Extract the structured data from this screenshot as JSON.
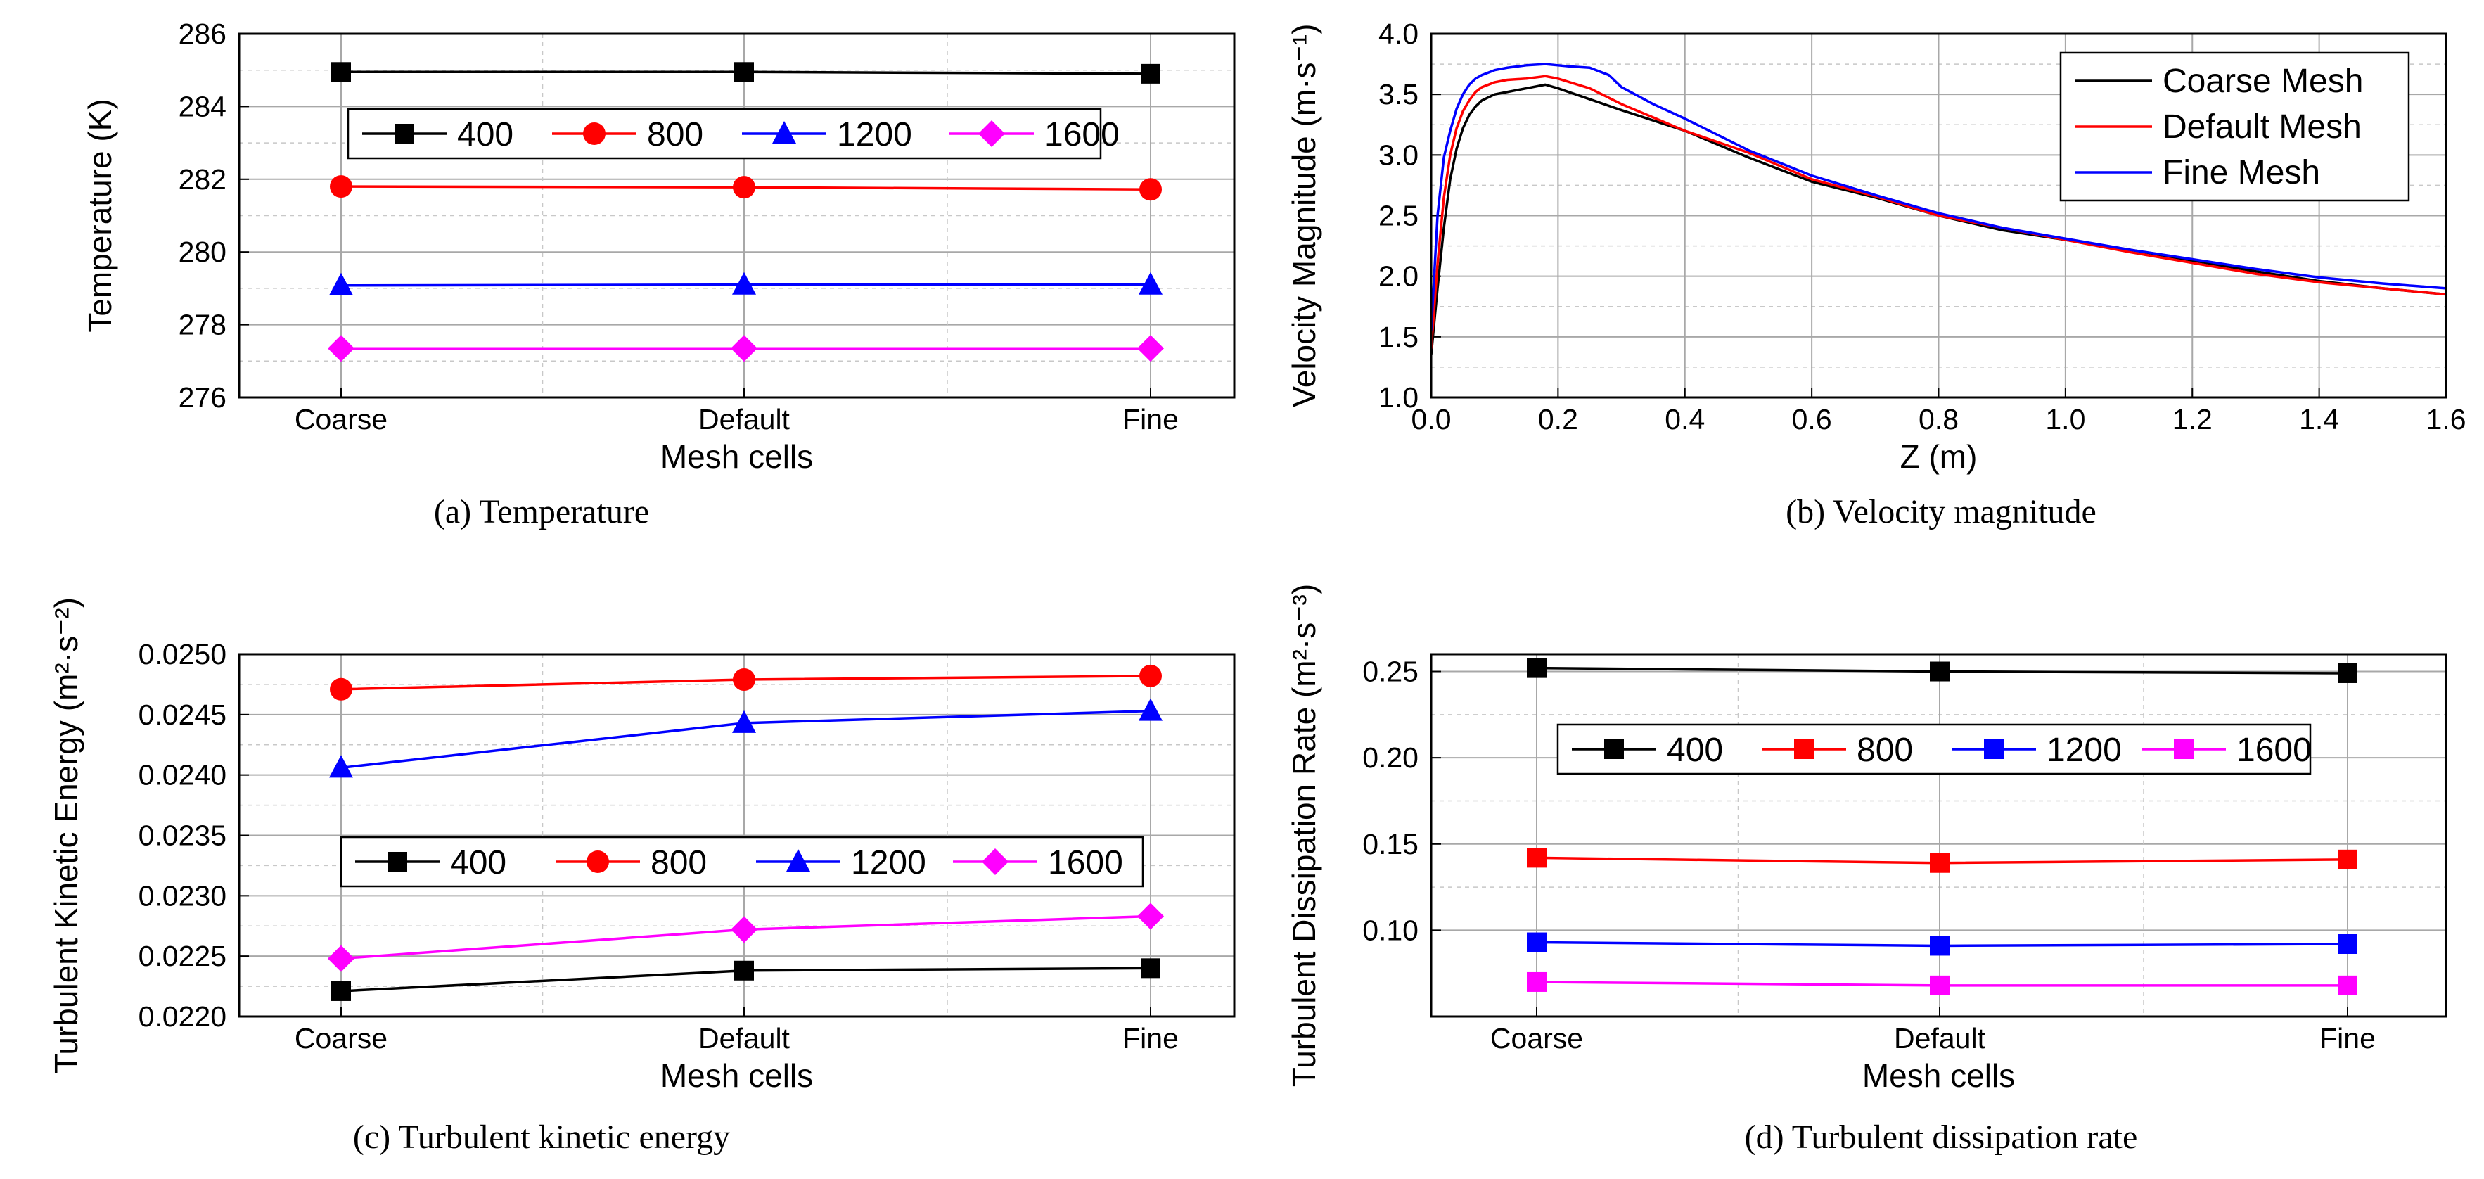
{
  "chart_data": [
    {
      "id": "a",
      "type": "line",
      "caption": "(a) Temperature",
      "xlabel": "Mesh cells",
      "ylabel": "Temperature (K)",
      "categories": [
        "Coarse",
        "Default",
        "Fine"
      ],
      "ylim": [
        276,
        286
      ],
      "yticks": [
        "276",
        "278",
        "280",
        "282",
        "284",
        "286"
      ],
      "legend_position": "top",
      "series": [
        {
          "name": "400",
          "color": "#000000",
          "marker": "square",
          "values": [
            284.95,
            284.95,
            284.9
          ]
        },
        {
          "name": "800",
          "color": "#ff0000",
          "marker": "circle",
          "values": [
            281.8,
            281.78,
            281.72
          ]
        },
        {
          "name": "1200",
          "color": "#0000ff",
          "marker": "triangle",
          "values": [
            279.08,
            279.1,
            279.1
          ]
        },
        {
          "name": "1600",
          "color": "#ff00ff",
          "marker": "diamond",
          "values": [
            277.35,
            277.35,
            277.35
          ]
        }
      ]
    },
    {
      "id": "b",
      "type": "line",
      "caption": "(b) Velocity magnitude",
      "xlabel": "Z (m)",
      "ylabel": "Velocity Magnitude (m·s⁻¹)",
      "xlim": [
        0,
        1.6
      ],
      "ylim": [
        1.0,
        4.0
      ],
      "xticks": [
        "0.0",
        "0.2",
        "0.4",
        "0.6",
        "0.8",
        "1.0",
        "1.2",
        "1.4",
        "1.6"
      ],
      "yticks": [
        "1.0",
        "1.5",
        "2.0",
        "2.5",
        "3.0",
        "3.5",
        "4.0"
      ],
      "legend_position": "top-right",
      "series": [
        {
          "name": "Coarse Mesh",
          "color": "#000000",
          "x": [
            0.0,
            0.01,
            0.02,
            0.03,
            0.04,
            0.05,
            0.06,
            0.07,
            0.08,
            0.1,
            0.12,
            0.15,
            0.18,
            0.2,
            0.25,
            0.3,
            0.4,
            0.5,
            0.6,
            0.7,
            0.8,
            0.9,
            1.0,
            1.1,
            1.2,
            1.3,
            1.4,
            1.5,
            1.6
          ],
          "y": [
            1.35,
            1.9,
            2.4,
            2.8,
            3.05,
            3.22,
            3.33,
            3.4,
            3.45,
            3.5,
            3.52,
            3.55,
            3.58,
            3.55,
            3.46,
            3.37,
            3.2,
            2.98,
            2.78,
            2.65,
            2.5,
            2.38,
            2.3,
            2.22,
            2.13,
            2.04,
            1.96,
            1.9,
            1.85
          ]
        },
        {
          "name": "Default Mesh",
          "color": "#ff0000",
          "x": [
            0.0,
            0.01,
            0.02,
            0.03,
            0.04,
            0.05,
            0.06,
            0.07,
            0.08,
            0.1,
            0.12,
            0.15,
            0.18,
            0.2,
            0.25,
            0.3,
            0.4,
            0.5,
            0.6,
            0.7,
            0.8,
            0.9,
            1.0,
            1.1,
            1.2,
            1.3,
            1.4,
            1.5,
            1.6
          ],
          "y": [
            1.4,
            2.1,
            2.65,
            3.0,
            3.22,
            3.36,
            3.45,
            3.52,
            3.56,
            3.6,
            3.62,
            3.63,
            3.65,
            3.63,
            3.55,
            3.42,
            3.2,
            3.02,
            2.8,
            2.66,
            2.5,
            2.4,
            2.3,
            2.2,
            2.11,
            2.02,
            1.95,
            1.9,
            1.85
          ]
        },
        {
          "name": "Fine Mesh",
          "color": "#0000ff",
          "x": [
            0.0,
            0.01,
            0.02,
            0.03,
            0.04,
            0.05,
            0.06,
            0.07,
            0.08,
            0.1,
            0.12,
            0.15,
            0.18,
            0.2,
            0.22,
            0.25,
            0.28,
            0.3,
            0.35,
            0.4,
            0.5,
            0.6,
            0.7,
            0.8,
            0.9,
            1.0,
            1.1,
            1.2,
            1.3,
            1.4,
            1.5,
            1.6
          ],
          "y": [
            1.55,
            2.5,
            2.98,
            3.2,
            3.38,
            3.5,
            3.58,
            3.63,
            3.66,
            3.7,
            3.72,
            3.74,
            3.75,
            3.74,
            3.73,
            3.72,
            3.66,
            3.56,
            3.42,
            3.3,
            3.04,
            2.83,
            2.67,
            2.52,
            2.4,
            2.31,
            2.22,
            2.14,
            2.06,
            1.99,
            1.94,
            1.9
          ]
        }
      ]
    },
    {
      "id": "c",
      "type": "line",
      "caption": "(c) Turbulent kinetic energy",
      "xlabel": "Mesh cells",
      "ylabel": "Turbulent Kinetic Energy (m²·s⁻²)",
      "categories": [
        "Coarse",
        "Default",
        "Fine"
      ],
      "ylim": [
        0.022,
        0.025
      ],
      "yticks": [
        "0.0220",
        "0.0225",
        "0.0230",
        "0.0235",
        "0.0240",
        "0.0245",
        "0.0250"
      ],
      "legend_position": "center",
      "series": [
        {
          "name": "400",
          "color": "#000000",
          "marker": "square",
          "values": [
            0.02221,
            0.02238,
            0.0224
          ]
        },
        {
          "name": "800",
          "color": "#ff0000",
          "marker": "circle",
          "values": [
            0.02471,
            0.02479,
            0.02482
          ]
        },
        {
          "name": "1200",
          "color": "#0000ff",
          "marker": "triangle",
          "values": [
            0.02406,
            0.02443,
            0.02453
          ]
        },
        {
          "name": "1600",
          "color": "#ff00ff",
          "marker": "diamond",
          "values": [
            0.02248,
            0.02272,
            0.02283
          ]
        }
      ]
    },
    {
      "id": "d",
      "type": "line",
      "caption": "(d) Turbulent dissipation rate",
      "xlabel": "Mesh cells",
      "ylabel": "Turbulent Dissipation Rate (m²·s⁻³)",
      "categories": [
        "Coarse",
        "Default",
        "Fine"
      ],
      "ylim": [
        0.05,
        0.26
      ],
      "yticks": [
        "0.10",
        "0.15",
        "0.20",
        "0.25"
      ],
      "legend_position": "top",
      "series": [
        {
          "name": "400",
          "color": "#000000",
          "marker": "square",
          "values": [
            0.252,
            0.25,
            0.249
          ]
        },
        {
          "name": "800",
          "color": "#ff0000",
          "marker": "square",
          "values": [
            0.142,
            0.139,
            0.141
          ]
        },
        {
          "name": "1200",
          "color": "#0000ff",
          "marker": "square",
          "values": [
            0.093,
            0.091,
            0.092
          ]
        },
        {
          "name": "1600",
          "color": "#ff00ff",
          "marker": "square",
          "values": [
            0.07,
            0.068,
            0.068
          ]
        }
      ]
    }
  ]
}
